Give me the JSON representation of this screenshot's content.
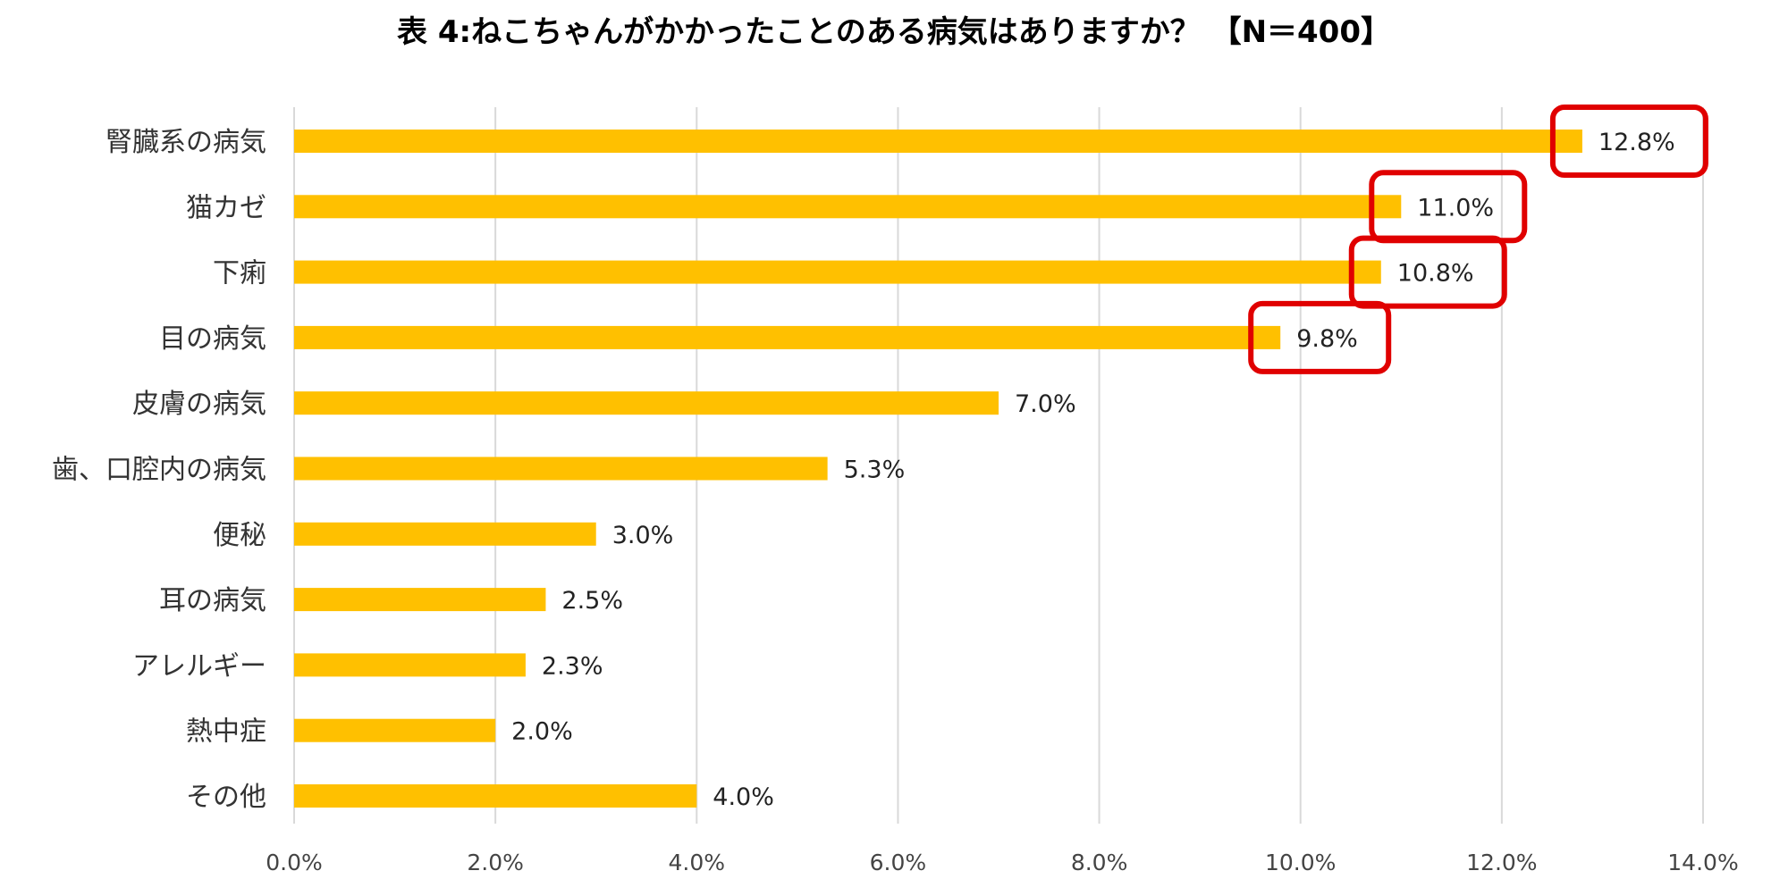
{
  "chart_data": {
    "type": "bar",
    "orientation": "horizontal",
    "title": "表 4:ねこちゃんがかかったことのある病気はありますか？ 【N＝400】",
    "categories": [
      "腎臓系の病気",
      "猫カゼ",
      "下痢",
      "目の病気",
      "皮膚の病気",
      "歯、口腔内の病気",
      "便秘",
      "耳の病気",
      "アレルギー",
      "熱中症",
      "その他"
    ],
    "values": [
      12.8,
      11.0,
      10.8,
      9.8,
      7.0,
      5.3,
      3.0,
      2.5,
      2.3,
      2.0,
      4.0
    ],
    "value_labels": [
      "12.8%",
      "11.0%",
      "10.8%",
      "9.8%",
      "7.0%",
      "5.3%",
      "3.0%",
      "2.5%",
      "2.3%",
      "2.0%",
      "4.0%"
    ],
    "xlim": [
      0,
      14
    ],
    "x_ticks": [
      0,
      2,
      4,
      6,
      8,
      10,
      12,
      14
    ],
    "x_tick_labels": [
      "0.0%",
      "2.0%",
      "4.0%",
      "6.0%",
      "8.0%",
      "10.0%",
      "12.0%",
      "14.0%"
    ],
    "highlighted": [
      "腎臓系の病気",
      "猫カゼ",
      "下痢",
      "目の病気"
    ],
    "grid": "vertical",
    "xlabel": "",
    "ylabel": "",
    "colors": {
      "bar": "#FFC000",
      "highlight_box": "#E00000",
      "grid": "#D9D9D9"
    }
  }
}
